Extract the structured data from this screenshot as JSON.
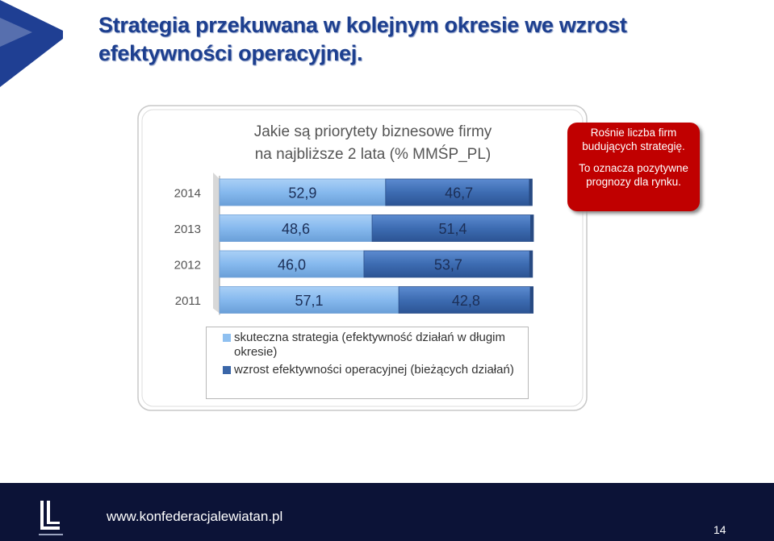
{
  "title": "Strategia przekuwana w kolejnym okresie we wzrost efektywności operacyjnej.",
  "colors": {
    "title": "#1d3f8f",
    "series_light": "#7fb2ea",
    "series_dark": "#3f6fb3",
    "callout": "#c00000",
    "footer": "#0c1337"
  },
  "callout": {
    "line1": "Rośnie liczba firm budujących strategię.",
    "line2": "To oznacza pozytywne prognozy dla rynku."
  },
  "chart_data": {
    "type": "bar",
    "orientation": "horizontal",
    "stacked": true,
    "title_line1": "Jakie są priorytety biznesowe firmy",
    "title_line2": "na najbliższe 2 lata (% MMŚP_PL)",
    "categories": [
      "2014",
      "2013",
      "2012",
      "2011"
    ],
    "series": [
      {
        "name": "skuteczna strategia (efektywność działań w długim okresie)",
        "values": [
          52.9,
          48.6,
          46.0,
          57.1
        ],
        "labels": [
          "52,9",
          "48,6",
          "46,0",
          "57,1"
        ]
      },
      {
        "name": "wzrost efektywności operacyjnej (bieżących działań)",
        "values": [
          46.7,
          51.4,
          53.7,
          42.8
        ],
        "labels": [
          "46,7",
          "51,4",
          "53,7",
          "42,8"
        ]
      }
    ],
    "xlim": [
      0,
      100
    ],
    "grid": false,
    "legend_position": "bottom"
  },
  "footer": {
    "url": "www.konfederacjalewiatan.pl",
    "page": "14",
    "logo_icon": "lewiatan-logo-icon"
  }
}
